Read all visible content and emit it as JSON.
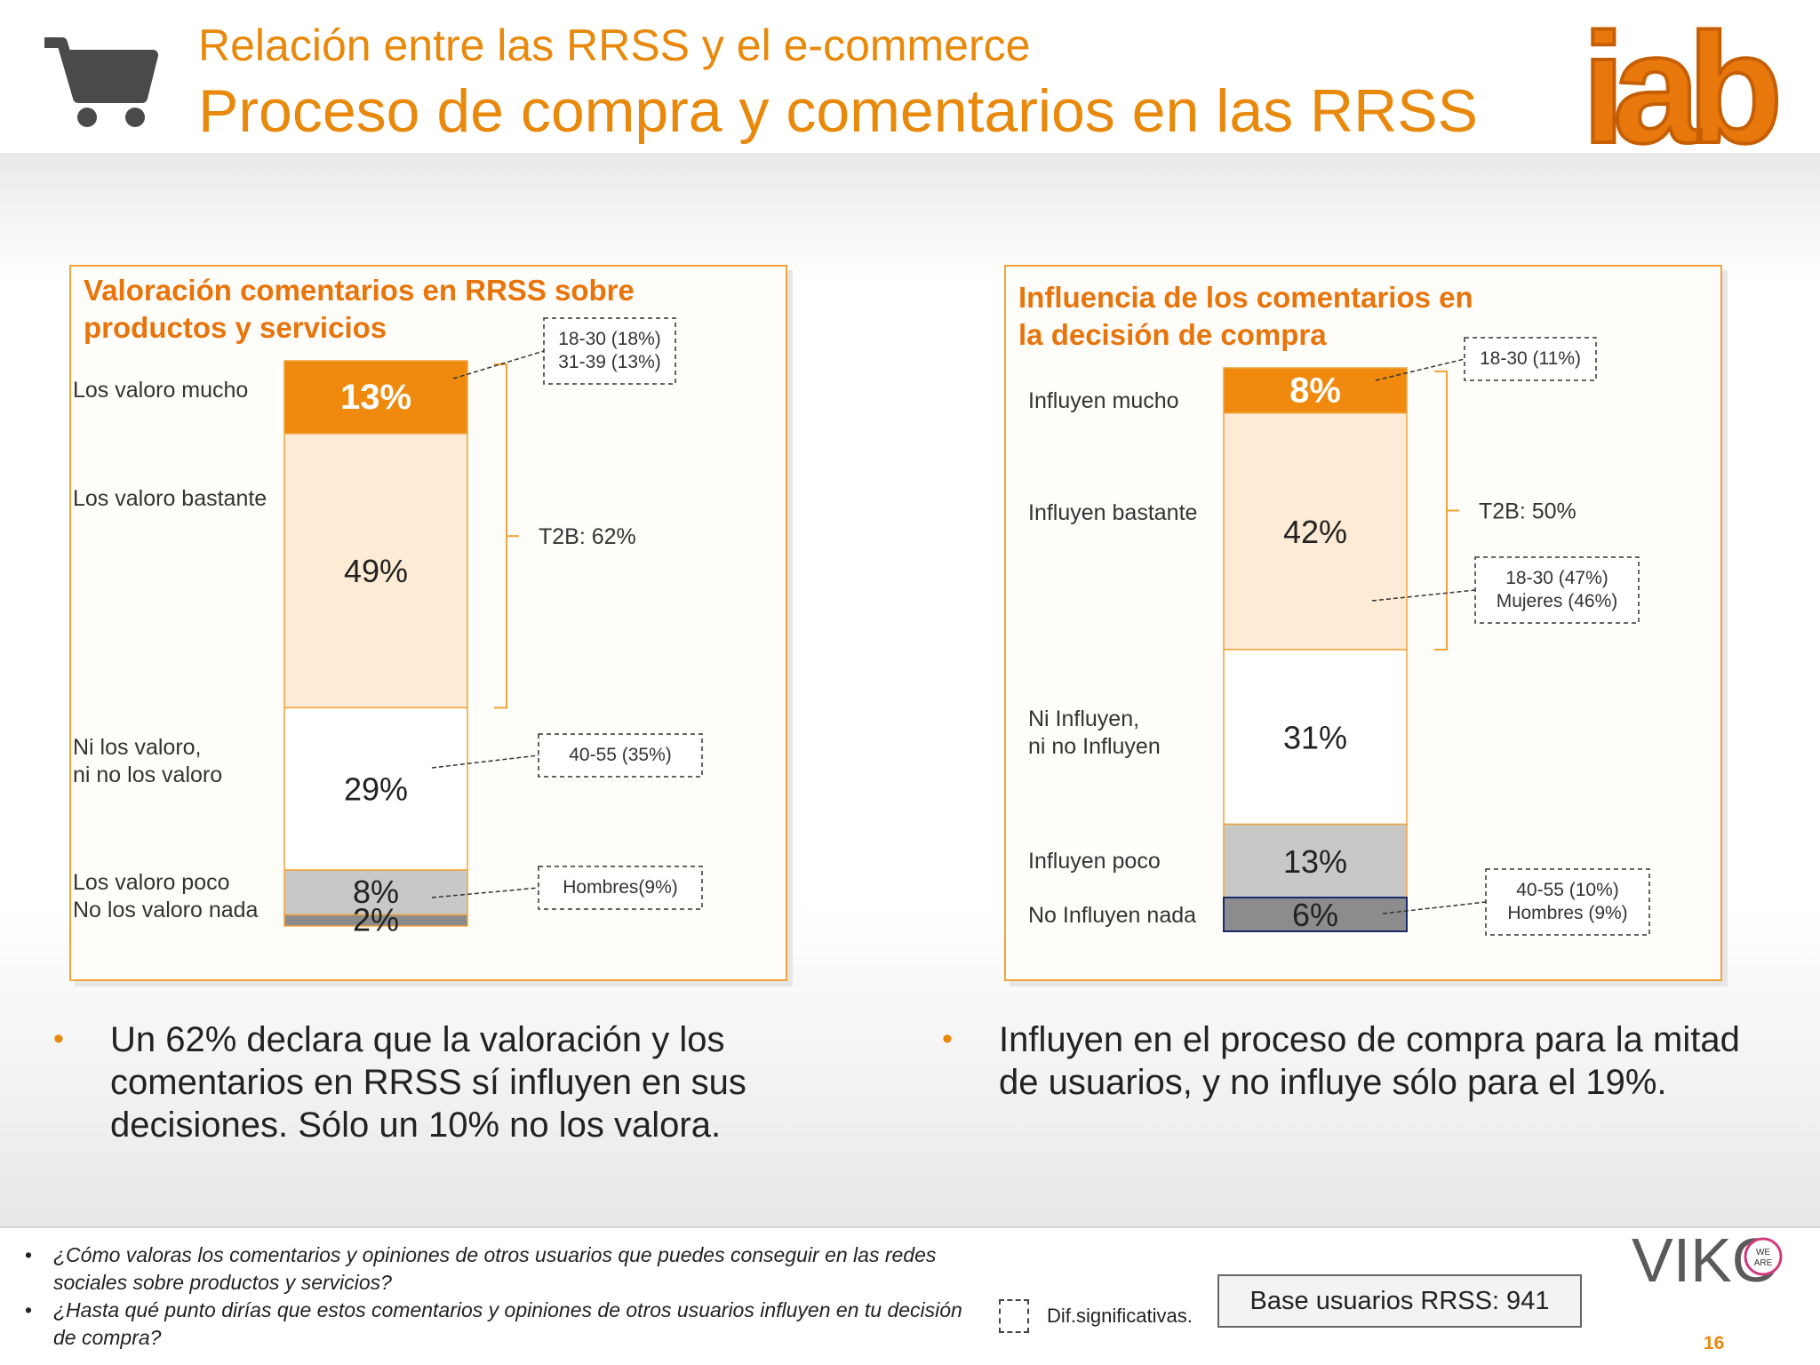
{
  "header": {
    "subtitle": "Relación entre las RRSS y el e-commerce",
    "title": "Proceso de compra y comentarios en las RRSS",
    "logo_text": "iab",
    "cart_icon": "shopping-cart-icon"
  },
  "colors": {
    "accent": "#e8890c",
    "bar_top": "#ef8a0e",
    "bar_light": "#fdebd5",
    "bar_neutral": "#ffffff",
    "bar_grey": "#c8c8c8",
    "bar_dark": "#8c8c8c"
  },
  "chart_data": [
    {
      "type": "bar",
      "stacked": true,
      "title": "Valoración comentarios en RRSS sobre productos y servicios",
      "categories": [
        "Los valoro mucho",
        "Los valoro bastante",
        "Ni los valoro, ni no los valoro",
        "Los valoro poco",
        "No los valoro nada"
      ],
      "values": [
        13,
        49,
        29,
        8,
        2
      ],
      "value_labels": [
        "13%",
        "49%",
        "29%",
        "8%",
        "2%"
      ],
      "bracket_label": "T2B: 62%",
      "callouts": [
        {
          "segment": 0,
          "text": [
            "18-30 (18%)",
            "31-39 (13%)"
          ]
        },
        {
          "segment": 2,
          "text": [
            "40-55 (35%)"
          ]
        },
        {
          "segment": 3,
          "text": [
            "Hombres(9%)"
          ]
        }
      ]
    },
    {
      "type": "bar",
      "stacked": true,
      "title": "Influencia de los comentarios en la decisión de compra",
      "categories": [
        "Influyen mucho",
        "Influyen bastante",
        "Ni Influyen, ni no Influyen",
        "Influyen poco",
        "No Influyen nada"
      ],
      "values": [
        8,
        42,
        31,
        13,
        6
      ],
      "value_labels": [
        "8%",
        "42%",
        "31%",
        "13%",
        "6%"
      ],
      "bracket_label": "T2B: 50%",
      "callouts": [
        {
          "segment": 0,
          "text": [
            "18-30 (11%)"
          ]
        },
        {
          "segment": 1,
          "text": [
            "18-30 (47%)",
            "Mujeres (46%)"
          ]
        },
        {
          "segment": 4,
          "text": [
            "40-55 (10%)",
            "Hombres (9%)"
          ]
        }
      ]
    }
  ],
  "left_panel": {
    "title_lines": [
      "Valoración comentarios en RRSS sobre",
      "productos y servicios"
    ],
    "labels": [
      "Los valoro mucho",
      "Los valoro bastante",
      "Ni los valoro,",
      "ni no los valoro",
      "Los valoro poco",
      "No los valoro nada"
    ]
  },
  "right_panel": {
    "title_lines": [
      "Influencia de los comentarios en",
      "la decisión de compra"
    ],
    "labels": [
      "Influyen mucho",
      "Influyen bastante",
      "Ni Influyen,",
      "ni no Influyen",
      "Influyen poco",
      "No Influyen nada"
    ]
  },
  "bullets": {
    "left": "Un 62% declara que la valoración y los comentarios en RRSS sí influyen en sus decisiones. Sólo un 10% no los valora.",
    "right": "Influyen en el proceso de compra para la mitad de usuarios, y no influye sólo para el 19%."
  },
  "footer": {
    "questions": [
      "¿Cómo valoras los comentarios y opiniones de otros usuarios que puedes conseguir en las redes sociales sobre productos y servicios?",
      "¿Hasta qué punto dirías que estos comentarios y opiniones de otros usuarios influyen en tu decisión de compra?"
    ],
    "legend": "Dif.significativas.",
    "base": "Base usuarios RRSS: 941",
    "page": "16",
    "brand": "VIKO",
    "brand_badge": [
      "WE",
      "ARE"
    ]
  }
}
